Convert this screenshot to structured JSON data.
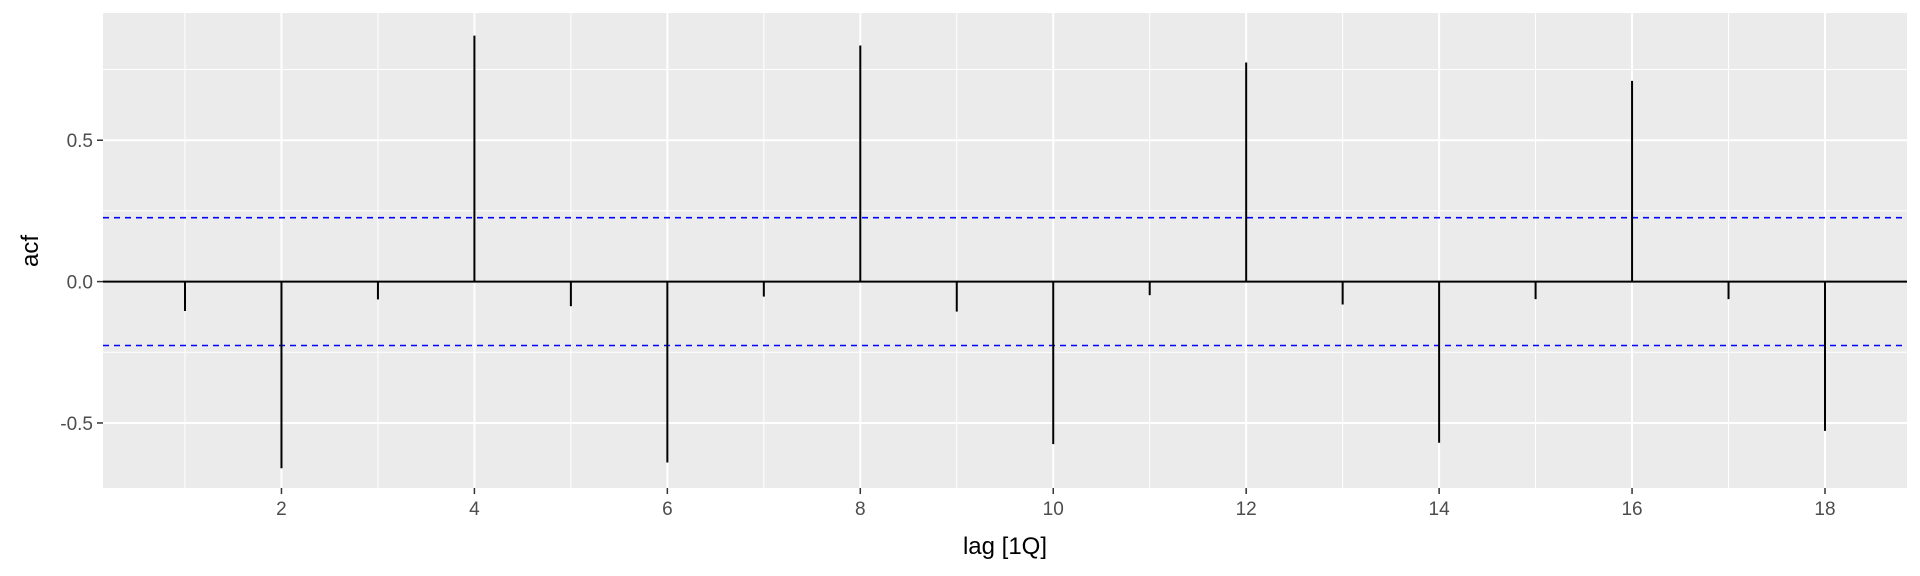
{
  "chart_data": {
    "type": "bar",
    "style": "acf-lollipop",
    "title": "",
    "xlabel": "lag [1Q]",
    "ylabel": "acf",
    "x": [
      1,
      2,
      3,
      4,
      5,
      6,
      7,
      8,
      9,
      10,
      11,
      12,
      13,
      14,
      15,
      16,
      17,
      18
    ],
    "values": [
      -0.104,
      -0.66,
      -0.063,
      0.87,
      -0.087,
      -0.64,
      -0.053,
      0.835,
      -0.106,
      -0.575,
      -0.048,
      0.775,
      -0.081,
      -0.57,
      -0.062,
      0.71,
      -0.062,
      -0.528
    ],
    "xlim": [
      0.15,
      18.85
    ],
    "ylim": [
      -0.73,
      0.95
    ],
    "x_ticks": [
      2,
      4,
      6,
      8,
      10,
      12,
      14,
      16,
      18
    ],
    "x_tick_labels": [
      "2",
      "4",
      "6",
      "8",
      "10",
      "12",
      "14",
      "16",
      "18"
    ],
    "y_ticks": [
      -0.5,
      0.0,
      0.5
    ],
    "y_tick_labels": [
      "-0.5",
      "0.0",
      "0.5"
    ],
    "confidence_bounds": [
      0.226,
      -0.226
    ],
    "grid": true,
    "legend": "none",
    "colors": {
      "panel_background": "#EBEBEB",
      "grid": "#FFFFFF",
      "bar": "#000000",
      "zero_line": "#000000",
      "confidence_line": "#0000FF",
      "tick_label": "#4D4D4D",
      "axis_title": "#000000"
    }
  }
}
